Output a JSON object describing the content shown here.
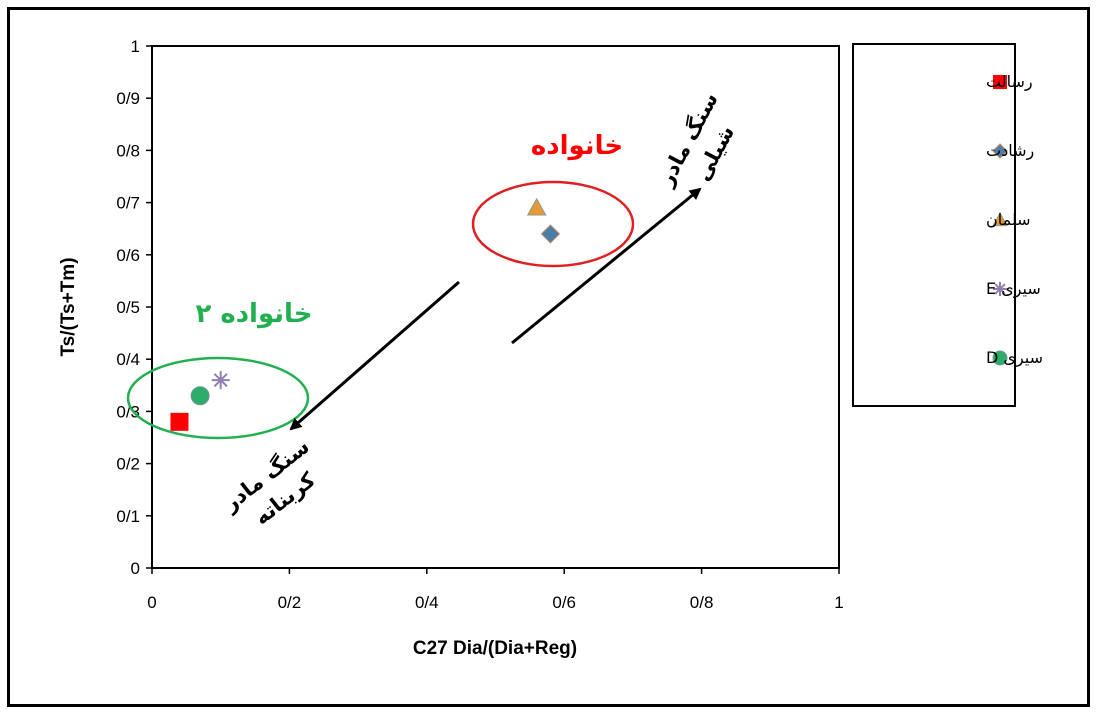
{
  "chart_data": {
    "type": "scatter",
    "xlabel": "C27 Dia/(Dia+Reg)",
    "ylabel": "Ts/(Ts+Tm)",
    "xlim": [
      0,
      1
    ],
    "ylim": [
      0,
      1
    ],
    "x_ticks": [
      "0",
      "0/2",
      "0/4",
      "0/6",
      "0/8",
      "1"
    ],
    "y_ticks": [
      "0",
      "0/1",
      "0/2",
      "0/3",
      "0/4",
      "0/5",
      "0/6",
      "0/7",
      "0/8",
      "0/9",
      "1"
    ],
    "grid": false,
    "legend_position": "right",
    "series": [
      {
        "name": "رسالت",
        "marker": "square",
        "color": "#ff0000",
        "points": [
          {
            "x": 0.04,
            "y": 0.28
          }
        ]
      },
      {
        "name": "رشادت",
        "marker": "diamond",
        "color": "#4a7ea5",
        "points": [
          {
            "x": 0.58,
            "y": 0.64
          }
        ]
      },
      {
        "name": "سلمان",
        "marker": "triangle",
        "color": "#e59a36",
        "points": [
          {
            "x": 0.56,
            "y": 0.69
          }
        ]
      },
      {
        "name": "سیری E",
        "marker": "star",
        "color": "#8f80b0",
        "points": [
          {
            "x": 0.1,
            "y": 0.36
          }
        ]
      },
      {
        "name": "سیری D",
        "marker": "circle",
        "color": "#2cae6a",
        "points": [
          {
            "x": 0.07,
            "y": 0.33
          }
        ]
      }
    ],
    "annotations": [
      {
        "id": "family-1",
        "text": "خانواده",
        "color": "#ff0000",
        "ellipse_color": "#e02020"
      },
      {
        "id": "family-2",
        "text": "خانواده ۲",
        "color": "#20b050",
        "ellipse_color": "#20b050"
      },
      {
        "id": "shale",
        "text_line1": "سنگ مادر",
        "text_line2": "شیلی",
        "color": "#000000"
      },
      {
        "id": "carbonate",
        "text_line1": "سنگ مادر",
        "text_line2": "کربناته",
        "color": "#000000"
      }
    ]
  }
}
